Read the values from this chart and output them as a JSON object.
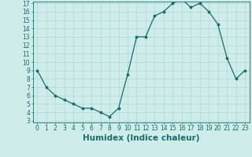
{
  "x": [
    0,
    1,
    2,
    3,
    4,
    5,
    6,
    7,
    8,
    9,
    10,
    11,
    12,
    13,
    14,
    15,
    16,
    17,
    18,
    19,
    20,
    21,
    22,
    23
  ],
  "y": [
    9.0,
    7.0,
    6.0,
    5.5,
    5.0,
    4.5,
    4.5,
    4.0,
    3.5,
    4.5,
    8.5,
    13.0,
    13.0,
    15.5,
    16.0,
    17.0,
    17.5,
    16.5,
    17.0,
    16.0,
    14.5,
    10.5,
    8.0,
    9.0
  ],
  "xlabel": "Humidex (Indice chaleur)",
  "ylim_min": 3,
  "ylim_max": 17,
  "xlim_min": 0,
  "xlim_max": 23,
  "yticks": [
    3,
    4,
    5,
    6,
    7,
    8,
    9,
    10,
    11,
    12,
    13,
    14,
    15,
    16,
    17
  ],
  "xticks": [
    0,
    1,
    2,
    3,
    4,
    5,
    6,
    7,
    8,
    9,
    10,
    11,
    12,
    13,
    14,
    15,
    16,
    17,
    18,
    19,
    20,
    21,
    22,
    23
  ],
  "line_color": "#1a6b6b",
  "marker_color": "#1a6b6b",
  "bg_color": "#ceecea",
  "grid_color": "#aed8d4",
  "xlabel_color": "#1a6b6b",
  "tick_color": "#1a6b6b",
  "spine_color": "#1a6b6b",
  "tick_fontsize": 5.5,
  "xlabel_fontsize": 7.5
}
